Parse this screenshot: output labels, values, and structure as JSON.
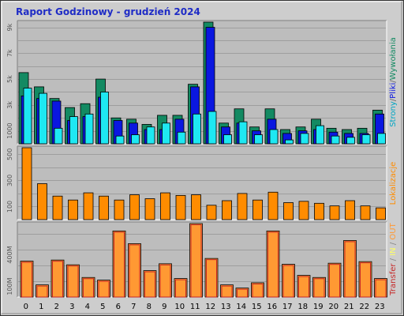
{
  "title": "Raport Godzinowy -  grudzień 2024",
  "colors": {
    "background": "#cdcdcd",
    "plot_bg": "#bdbdbd",
    "grid": "#9e9e9e",
    "visits": "#138a62",
    "pages": "#0a17e0",
    "files": "#1ee8f2",
    "visitors": "#ff8c00",
    "transfer": "#ff9933",
    "accent_red": "#c62828",
    "title_blue": "#1f2cc6"
  },
  "chart_data": [
    {
      "type": "bar",
      "categories": [
        "0",
        "1",
        "2",
        "3",
        "4",
        "5",
        "6",
        "7",
        "8",
        "9",
        "10",
        "11",
        "12",
        "13",
        "14",
        "15",
        "16",
        "17",
        "18",
        "19",
        "20",
        "21",
        "22",
        "23"
      ],
      "series": [
        {
          "name": "Wywołania",
          "values": [
            5500,
            4400,
            3500,
            2800,
            3100,
            5000,
            2000,
            1900,
            1500,
            2200,
            2200,
            4600,
            9400,
            1600,
            2700,
            1300,
            2700,
            1100,
            1300,
            1900,
            1200,
            1100,
            1200,
            2600
          ]
        },
        {
          "name": "Pliki",
          "values": [
            4300,
            3900,
            1200,
            2100,
            2300,
            4000,
            600,
            700,
            1300,
            1600,
            900,
            2300,
            2500,
            700,
            1700,
            700,
            1100,
            300,
            800,
            1400,
            600,
            500,
            700,
            800
          ]
        },
        {
          "name": "Strony",
          "values": [
            3700,
            3500,
            3300,
            1800,
            2100,
            3600,
            1800,
            1600,
            1100,
            1100,
            1900,
            4400,
            9000,
            1300,
            1600,
            1000,
            1900,
            800,
            1000,
            1100,
            900,
            800,
            800,
            2300
          ]
        }
      ],
      "yticks": [
        "1000",
        "3k",
        "5k",
        "7k",
        "9k"
      ],
      "ytick_values": [
        1000,
        3000,
        5000,
        7000,
        9000
      ],
      "ylim": [
        0,
        9400
      ],
      "side_label": [
        {
          "text": "Strony",
          "color": "#00a6c4"
        },
        {
          "text": "/",
          "color": "#666666"
        },
        {
          "text": "Pliki",
          "color": "#0a17e0"
        },
        {
          "text": "/",
          "color": "#666666"
        },
        {
          "text": "Wywołania",
          "color": "#138a62"
        }
      ]
    },
    {
      "type": "bar",
      "categories": [
        "0",
        "1",
        "2",
        "3",
        "4",
        "5",
        "6",
        "7",
        "8",
        "9",
        "10",
        "11",
        "12",
        "13",
        "14",
        "15",
        "16",
        "17",
        "18",
        "19",
        "20",
        "21",
        "22",
        "23"
      ],
      "series": [
        {
          "name": "Lokalizacje",
          "values": [
            550,
            275,
            180,
            150,
            205,
            180,
            150,
            190,
            160,
            205,
            185,
            190,
            110,
            145,
            200,
            150,
            210,
            130,
            140,
            125,
            105,
            145,
            105,
            90
          ]
        }
      ],
      "yticks": [
        "100",
        "300",
        "500"
      ],
      "ytick_values": [
        100,
        300,
        500
      ],
      "ylim": [
        0,
        550
      ],
      "side_label": [
        {
          "text": "Lokalizacje",
          "color": "#ff8c00"
        }
      ]
    },
    {
      "type": "bar",
      "categories": [
        "0",
        "1",
        "2",
        "3",
        "4",
        "5",
        "6",
        "7",
        "8",
        "9",
        "10",
        "11",
        "12",
        "13",
        "14",
        "15",
        "16",
        "17",
        "18",
        "19",
        "20",
        "21",
        "22",
        "23"
      ],
      "series": [
        {
          "name": "Transfer",
          "values": [
            340,
            115,
            350,
            305,
            185,
            160,
            625,
            505,
            250,
            315,
            175,
            695,
            365,
            115,
            85,
            135,
            625,
            310,
            205,
            185,
            320,
            535,
            335,
            175
          ]
        }
      ],
      "yticks": [
        "100M",
        "400M"
      ],
      "ytick_values": [
        100,
        400
      ],
      "ylim": [
        0,
        695
      ],
      "side_label": [
        {
          "text": "Transfer",
          "color": "#c62828"
        },
        {
          "text": " / ",
          "color": "#888888"
        },
        {
          "text": "IN",
          "color": "#ffff66"
        },
        {
          "text": " / ",
          "color": "#888888"
        },
        {
          "text": "OUT",
          "color": "#ff9933"
        }
      ]
    }
  ]
}
